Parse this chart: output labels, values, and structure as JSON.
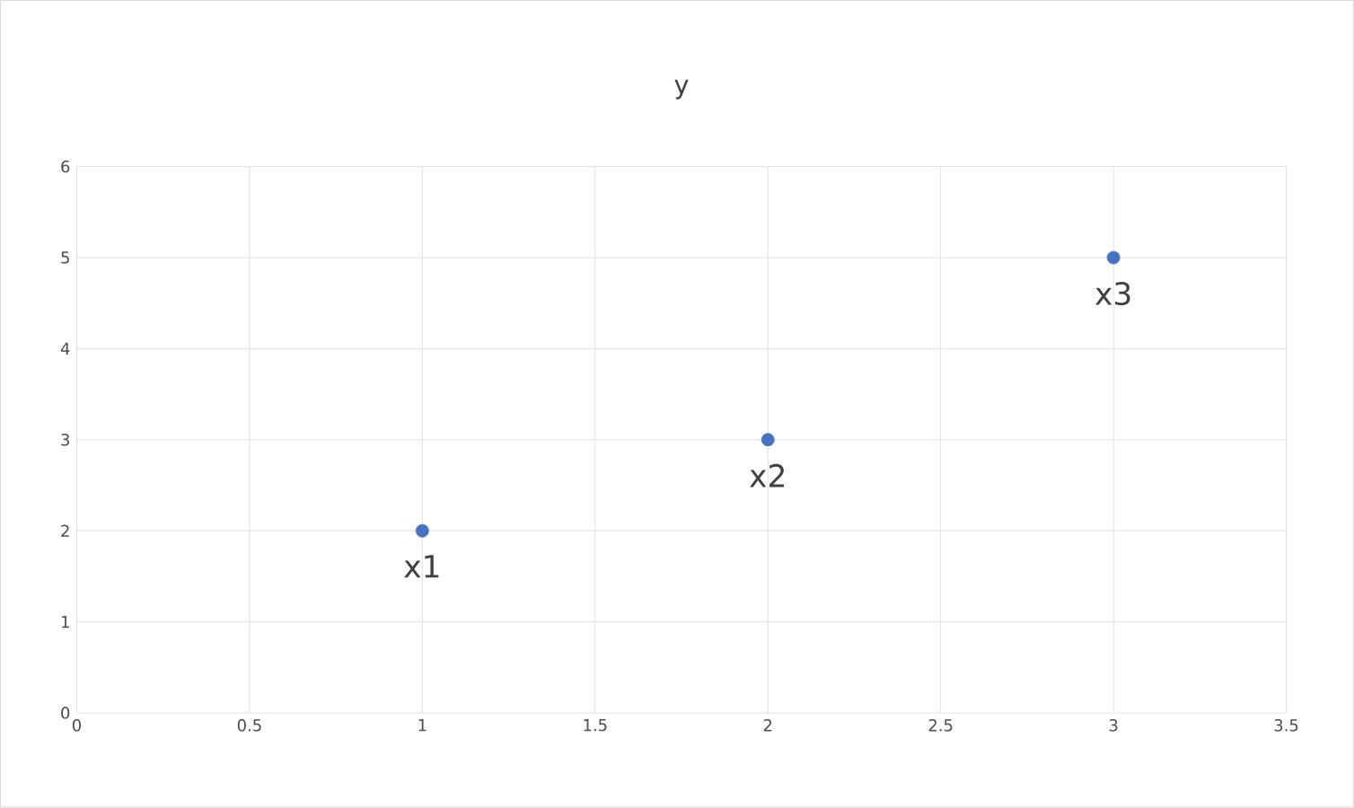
{
  "chart_data": {
    "type": "scatter",
    "title": "y",
    "x": [
      1,
      2,
      3
    ],
    "values": [
      2,
      3,
      5
    ],
    "color": "#4472c4",
    "marker": "circle",
    "xlim": [
      0,
      3.5
    ],
    "xticks": [
      0,
      0.5,
      1,
      1.5,
      2,
      2.5,
      3,
      3.5
    ],
    "ylim": [
      0,
      6
    ],
    "yticks": [
      0,
      1,
      2,
      3,
      4,
      5,
      6
    ],
    "grid": true,
    "annotations": [
      {
        "text": "x1",
        "x": 1,
        "y": 2
      },
      {
        "text": "x2",
        "x": 2,
        "y": 3
      },
      {
        "text": "x3",
        "x": 3,
        "y": 5
      }
    ]
  }
}
